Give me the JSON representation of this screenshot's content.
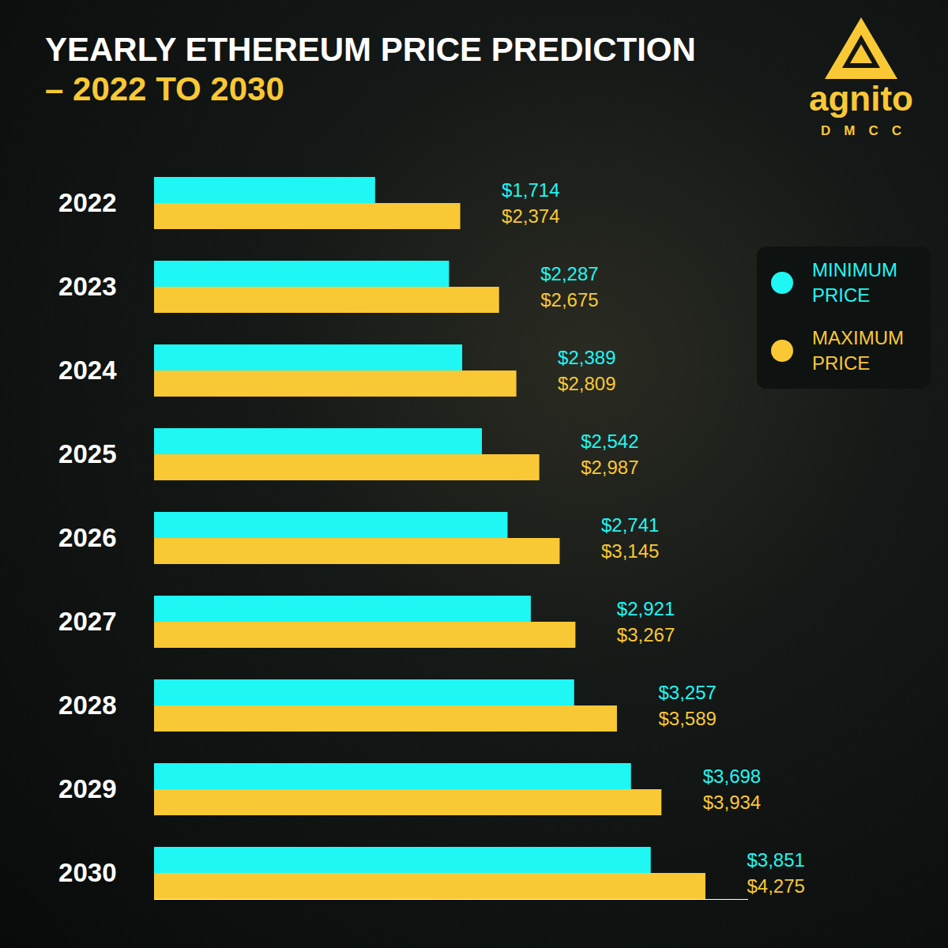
{
  "chart_data": {
    "type": "bar",
    "orientation": "horizontal",
    "title": "YEARLY ETHEREUM PRICE PREDICTION",
    "subtitle": "– 2022 TO 2030",
    "logo_text": "agnito",
    "logo_subtext": "DMCC",
    "categories": [
      "2022",
      "2023",
      "2024",
      "2025",
      "2026",
      "2027",
      "2028",
      "2029",
      "2030"
    ],
    "series": [
      {
        "name": "MINIMUM PRICE",
        "color": "#1ef7f4",
        "values": [
          1714,
          2287,
          2389,
          2542,
          2741,
          2921,
          3257,
          3698,
          3851
        ],
        "value_labels": [
          "$1,714",
          "$2,287",
          "$2,389",
          "$2,542",
          "$2,741",
          "$2,921",
          "$3,257",
          "$3,698",
          "$3,851"
        ]
      },
      {
        "name": "MAXIMUM PRICE",
        "color": "#f9c835",
        "values": [
          2374,
          2675,
          2809,
          2987,
          3145,
          3267,
          3589,
          3934,
          4275
        ],
        "value_labels": [
          "$2,374",
          "$2,675",
          "$2,809",
          "$2,987",
          "$3,145",
          "$3,267",
          "$3,589",
          "$3,934",
          "$4,275"
        ]
      }
    ],
    "xlim": [
      0,
      4600
    ],
    "xticks": [],
    "tick_labels": "y",
    "data_labels": true,
    "legend": "right"
  }
}
